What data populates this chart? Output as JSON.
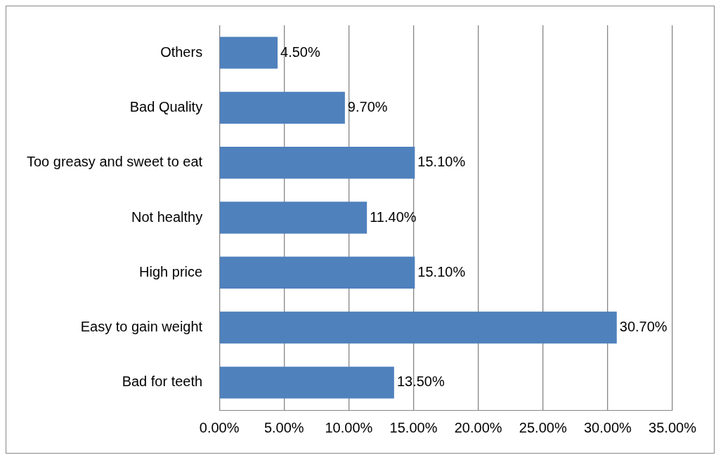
{
  "chart_data": {
    "type": "bar",
    "orientation": "horizontal",
    "categories": [
      "Others",
      "Bad Quality",
      "Too greasy and sweet to eat",
      "Not healthy",
      "High price",
      "Easy to gain weight",
      "Bad for teeth"
    ],
    "values": [
      4.5,
      9.7,
      15.1,
      11.4,
      15.1,
      30.7,
      13.5
    ],
    "value_labels": [
      "4.50%",
      "9.70%",
      "15.10%",
      "11.40%",
      "15.10%",
      "30.70%",
      "13.50%"
    ],
    "color": "#4f81bd",
    "xlim": [
      0,
      35
    ],
    "xticks": [
      {
        "value": 0,
        "label": "0.00%"
      },
      {
        "value": 5,
        "label": "5.00%"
      },
      {
        "value": 10,
        "label": "10.00%"
      },
      {
        "value": 15,
        "label": "15.00%"
      },
      {
        "value": 20,
        "label": "20.00%"
      },
      {
        "value": 25,
        "label": "25.00%"
      },
      {
        "value": 30,
        "label": "30.00%"
      },
      {
        "value": 35,
        "label": "35.00%"
      }
    ],
    "grid": "x",
    "legend": false
  }
}
